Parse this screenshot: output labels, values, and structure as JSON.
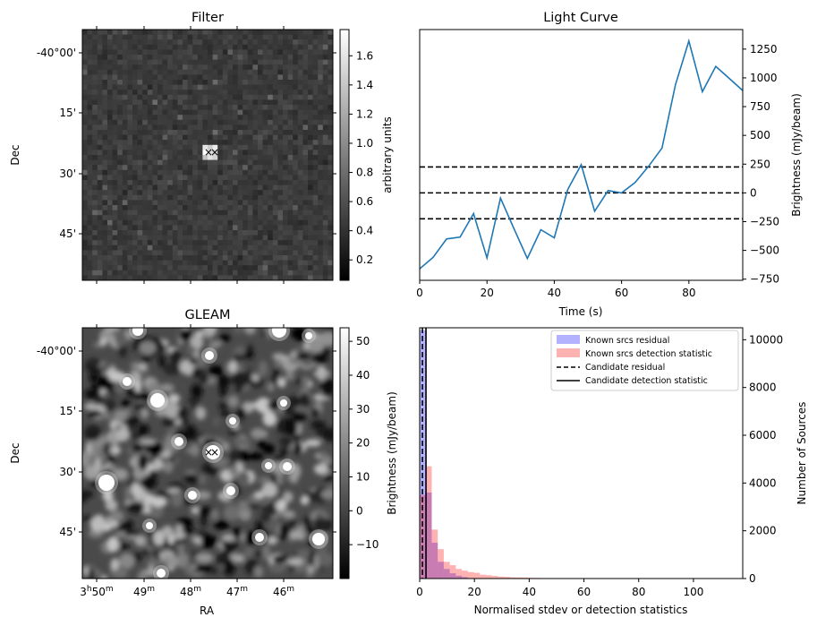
{
  "chart_data": [
    {
      "type": "heatmap",
      "title": "Filter",
      "xlabel": "",
      "ylabel": "Dec",
      "y_ticks": [
        "-40°00'",
        "15'",
        "30'",
        "45'"
      ],
      "colorbar": {
        "label": "arbitrary units",
        "range": [
          0.06,
          1.78
        ],
        "ticks": [
          0.2,
          0.4,
          0.6,
          0.8,
          1.0,
          1.2,
          1.4,
          1.6
        ],
        "tick_labels": [
          "0.2",
          "0.4",
          "0.6",
          "0.8",
          "1.0",
          "1.2",
          "1.4",
          "1.6"
        ]
      },
      "markers": [
        {
          "symbol": "×",
          "color": "#ff0000"
        },
        {
          "symbol": "×",
          "color": "#0000ff"
        }
      ]
    },
    {
      "type": "line",
      "title": "Light Curve",
      "xlabel": "Time (s)",
      "ylabel": "Brightness (mJy/beam)",
      "xlim": [
        0,
        96
      ],
      "ylim": [
        -760,
        1420
      ],
      "x_ticks": [
        0,
        20,
        40,
        60,
        80
      ],
      "y_ticks": [
        -750,
        -500,
        -250,
        0,
        250,
        500,
        750,
        1000,
        1250
      ],
      "color": "#1f77b4",
      "series": [
        {
          "x": [
            0,
            4,
            8,
            12,
            16,
            20,
            24,
            28,
            32,
            36,
            40,
            44,
            48,
            52,
            56,
            60,
            64,
            68,
            72,
            76,
            80,
            84,
            88,
            92,
            96
          ],
          "values": [
            -660,
            -560,
            -400,
            -385,
            -180,
            -565,
            -45,
            -310,
            -570,
            -320,
            -390,
            30,
            245,
            -160,
            20,
            0,
            90,
            230,
            390,
            940,
            1320,
            880,
            1100,
            995,
            890
          ]
        }
      ],
      "hlines": [
        225,
        0,
        -225
      ],
      "hline_style": "dashed"
    },
    {
      "type": "heatmap",
      "title": "GLEAM",
      "xlabel": "RA",
      "ylabel": "Dec",
      "x_ticks": [
        "3h50m",
        "49m",
        "48m",
        "47m",
        "46m"
      ],
      "y_ticks": [
        "-40°00'",
        "15'",
        "30'",
        "45'"
      ],
      "colorbar": {
        "label": "",
        "range": [
          -20,
          54
        ],
        "ticks": [
          -10,
          0,
          10,
          20,
          30,
          40,
          50
        ],
        "tick_labels": [
          "−10",
          "0",
          "10",
          "20",
          "30",
          "40",
          "50"
        ]
      },
      "markers": [
        {
          "symbol": "×",
          "color": "#ff0000"
        },
        {
          "symbol": "×",
          "color": "#0000ff"
        }
      ]
    },
    {
      "type": "bar",
      "subtype": "histogram",
      "xlabel": "Normalised stdev or detection statistics",
      "ylabel": "Brightness (mJy/beam)",
      "ylabel_right": "Number of Sources",
      "xlim": [
        0,
        118
      ],
      "ylim": [
        0,
        10500
      ],
      "x_ticks": [
        0,
        20,
        40,
        60,
        80,
        100
      ],
      "y_ticks": [
        0,
        2000,
        4000,
        6000,
        8000,
        10000
      ],
      "bin_width": 2.2,
      "series": [
        {
          "name": "Known srcs residual",
          "color": "#0000ff",
          "alpha": 0.3,
          "x": [
            0,
            2.2,
            4.4,
            6.6,
            8.8,
            11,
            13.2,
            15.4
          ],
          "values": [
            10400,
            3600,
            1500,
            700,
            400,
            220,
            120,
            60
          ]
        },
        {
          "name": "Known srcs detection statistic",
          "color": "#ff0000",
          "alpha": 0.3,
          "x": [
            0,
            2.2,
            4.4,
            6.6,
            8.8,
            11,
            13.2,
            15.4,
            17.6,
            19.8,
            22,
            24.2,
            26.4,
            28.6,
            30.8,
            33,
            35.2,
            37.4,
            39.6,
            41.8,
            44,
            50,
            58,
            66,
            72,
            80,
            92,
            104,
            112
          ],
          "values": [
            3500,
            4700,
            2050,
            1230,
            700,
            560,
            400,
            330,
            270,
            240,
            160,
            140,
            110,
            80,
            70,
            50,
            45,
            40,
            30,
            25,
            20,
            15,
            12,
            10,
            12,
            8,
            8,
            6,
            5
          ]
        }
      ],
      "vlines": [
        {
          "name": "Candidate residual",
          "x": 1.0,
          "style": "dashed"
        },
        {
          "name": "Candidate detection statistic",
          "x": 2.3,
          "style": "solid"
        }
      ],
      "legend_position": "top-right"
    }
  ]
}
